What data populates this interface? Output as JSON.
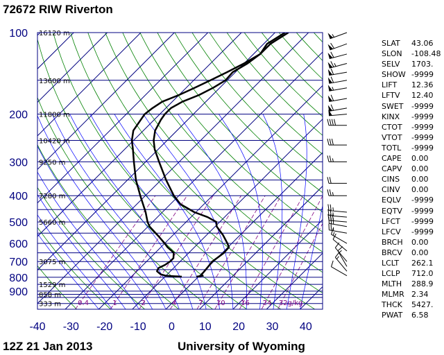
{
  "header": {
    "title": "72672 RIW Riverton",
    "footer_left": "12Z 21 Jan 2013",
    "footer_right": "University of Wyoming"
  },
  "colors": {
    "isobars": "#000080",
    "isotherms": "#000080",
    "dry_adiabats": "#008000",
    "moist_adiabats": "#0000ff",
    "mixing_ratio": "#800080",
    "sounding": "#000000",
    "axis_labels": "#000080"
  },
  "chart_data": {
    "type": "skew-t",
    "pressure_axis": {
      "scale": "log",
      "range_hpa": [
        1000,
        100
      ],
      "labeled_levels": [
        100,
        200,
        300,
        400,
        500,
        600,
        700,
        800,
        900
      ],
      "labels": [
        "100",
        "200",
        "300",
        "400",
        "500",
        "600",
        "700",
        "800",
        "900"
      ]
    },
    "temperature_axis": {
      "range_c": [
        -40,
        45
      ],
      "ticks": [
        -40,
        -30,
        -20,
        -10,
        0,
        10,
        20,
        30,
        40
      ],
      "labels": [
        "-40",
        "-30",
        "-20",
        "-10",
        "0",
        "10",
        "20",
        "30",
        "40"
      ]
    },
    "height_labels": [
      {
        "p": 100,
        "text": "16120 m"
      },
      {
        "p": 150,
        "text": "13600 m"
      },
      {
        "p": 200,
        "text": "11800 m"
      },
      {
        "p": 250,
        "text": "10420 m"
      },
      {
        "p": 300,
        "text": "9250 m"
      },
      {
        "p": 400,
        "text": "7280 m"
      },
      {
        "p": 500,
        "text": "5660 m"
      },
      {
        "p": 700,
        "text": "3075 m"
      },
      {
        "p": 850,
        "text": "1529 m"
      },
      {
        "p": 925,
        "text": "858 m"
      },
      {
        "p": 1000,
        "text": "333 m"
      }
    ],
    "mixing_ratio_labels": [
      {
        "w": 0.4,
        "text": "0.4"
      },
      {
        "w": 1,
        "text": "1"
      },
      {
        "w": 2,
        "text": "2"
      },
      {
        "w": 4,
        "text": "4"
      },
      {
        "w": 7,
        "text": "7"
      },
      {
        "w": 10,
        "text": "10"
      },
      {
        "w": 16,
        "text": "16"
      },
      {
        "w": 24,
        "text": "24"
      },
      {
        "w": 32,
        "text": "32"
      }
    ],
    "mixing_ratio_unit": "g/kg",
    "series": [
      {
        "points": [
          [
            796,
            -0.6
          ],
          [
            790,
            1.0
          ],
          [
            780,
            0.2
          ],
          [
            770,
            0.2
          ],
          [
            730,
            -0.1
          ],
          [
            700,
            -0.4
          ],
          [
            650,
            0.5
          ],
          [
            620,
            0.3
          ],
          [
            600,
            -1.3
          ],
          [
            560,
            -5.0
          ],
          [
            520,
            -9.5
          ],
          [
            500,
            -11.0
          ],
          [
            480,
            -15.0
          ],
          [
            460,
            -20.5
          ],
          [
            430,
            -27.0
          ],
          [
            400,
            -31.5
          ],
          [
            350,
            -38.5
          ],
          [
            300,
            -46.0
          ],
          [
            270,
            -51.0
          ],
          [
            250,
            -54.0
          ],
          [
            230,
            -56.5
          ],
          [
            210,
            -58.0
          ],
          [
            200,
            -58.5
          ],
          [
            190,
            -58.5
          ],
          [
            180,
            -57.0
          ],
          [
            170,
            -54.0
          ],
          [
            160,
            -52.0
          ],
          [
            150,
            -50.5
          ],
          [
            140,
            -50.8
          ],
          [
            130,
            -49.0
          ],
          [
            120,
            -48.0
          ],
          [
            110,
            -49.0
          ],
          [
            100,
            -47.0
          ]
        ]
      },
      {
        "points": [
          [
            796,
            -5.0
          ],
          [
            790,
            -10.0
          ],
          [
            780,
            -12.0
          ],
          [
            760,
            -14.0
          ],
          [
            740,
            -14.5
          ],
          [
            720,
            -13.5
          ],
          [
            700,
            -13.0
          ],
          [
            680,
            -13.0
          ],
          [
            650,
            -14.5
          ],
          [
            620,
            -18.0
          ],
          [
            600,
            -20.0
          ],
          [
            560,
            -24.5
          ],
          [
            520,
            -29.5
          ],
          [
            500,
            -31.5
          ],
          [
            460,
            -35.0
          ],
          [
            400,
            -41.5
          ],
          [
            350,
            -47.5
          ],
          [
            300,
            -53.5
          ],
          [
            270,
            -57.5
          ],
          [
            250,
            -60.5
          ],
          [
            230,
            -63.0
          ],
          [
            210,
            -64.0
          ],
          [
            200,
            -64.5
          ],
          [
            190,
            -64.0
          ],
          [
            180,
            -63.0
          ],
          [
            170,
            -60.0
          ],
          [
            160,
            -57.5
          ],
          [
            150,
            -55.0
          ],
          [
            140,
            -52.5
          ],
          [
            130,
            -50.0
          ],
          [
            120,
            -48.0
          ],
          [
            110,
            -48.0
          ],
          [
            100,
            -46.0
          ]
        ]
      }
    ],
    "wind_barbs": [
      {
        "p": 100,
        "dir": 250,
        "spd": 55
      },
      {
        "p": 110,
        "dir": 250,
        "spd": 60
      },
      {
        "p": 120,
        "dir": 255,
        "spd": 60
      },
      {
        "p": 130,
        "dir": 255,
        "spd": 65
      },
      {
        "p": 140,
        "dir": 260,
        "spd": 60
      },
      {
        "p": 150,
        "dir": 260,
        "spd": 60
      },
      {
        "p": 160,
        "dir": 260,
        "spd": 55
      },
      {
        "p": 175,
        "dir": 260,
        "spd": 60
      },
      {
        "p": 190,
        "dir": 260,
        "spd": 60
      },
      {
        "p": 200,
        "dir": 265,
        "spd": 50
      },
      {
        "p": 220,
        "dir": 270,
        "spd": 40
      },
      {
        "p": 260,
        "dir": 270,
        "spd": 30
      },
      {
        "p": 300,
        "dir": 270,
        "spd": 25
      },
      {
        "p": 360,
        "dir": 270,
        "spd": 20
      },
      {
        "p": 400,
        "dir": 270,
        "spd": 25
      },
      {
        "p": 460,
        "dir": 275,
        "spd": 25
      },
      {
        "p": 480,
        "dir": 275,
        "spd": 25
      },
      {
        "p": 500,
        "dir": 275,
        "spd": 30
      },
      {
        "p": 520,
        "dir": 280,
        "spd": 30
      },
      {
        "p": 550,
        "dir": 280,
        "spd": 25
      },
      {
        "p": 600,
        "dir": 300,
        "spd": 15
      },
      {
        "p": 640,
        "dir": 310,
        "spd": 10
      },
      {
        "p": 700,
        "dir": 320,
        "spd": 10
      },
      {
        "p": 730,
        "dir": 330,
        "spd": 15
      },
      {
        "p": 760,
        "dir": 320,
        "spd": 15
      },
      {
        "p": 790,
        "dir": 300,
        "spd": 10
      }
    ]
  },
  "indices": [
    {
      "key": "SLAT",
      "value": "43.06"
    },
    {
      "key": "SLON",
      "value": "-108.48"
    },
    {
      "key": "SELV",
      "value": "1703."
    },
    {
      "key": "SHOW",
      "value": "-9999"
    },
    {
      "key": "LIFT",
      "value": "12.36"
    },
    {
      "key": "LFTV",
      "value": "12.40"
    },
    {
      "key": "SWET",
      "value": "-9999"
    },
    {
      "key": "KINX",
      "value": "-9999"
    },
    {
      "key": "CTOT",
      "value": "-9999"
    },
    {
      "key": "VTOT",
      "value": "-9999"
    },
    {
      "key": "TOTL",
      "value": "-9999"
    },
    {
      "key": "CAPE",
      "value": "0.00"
    },
    {
      "key": "CAPV",
      "value": "0.00"
    },
    {
      "key": "CINS",
      "value": "0.00"
    },
    {
      "key": "CINV",
      "value": "0.00"
    },
    {
      "key": "EQLV",
      "value": "-9999"
    },
    {
      "key": "EQTV",
      "value": "-9999"
    },
    {
      "key": "LFCT",
      "value": "-9999"
    },
    {
      "key": "LFCV",
      "value": "-9999"
    },
    {
      "key": "BRCH",
      "value": "0.00"
    },
    {
      "key": "BRCV",
      "value": "0.00"
    },
    {
      "key": "LCLT",
      "value": "262.1"
    },
    {
      "key": "LCLP",
      "value": "712.0"
    },
    {
      "key": "MLTH",
      "value": "288.9"
    },
    {
      "key": "MLMR",
      "value": "2.34"
    },
    {
      "key": "THCK",
      "value": "5427."
    },
    {
      "key": "PWAT",
      "value": "6.58"
    }
  ]
}
